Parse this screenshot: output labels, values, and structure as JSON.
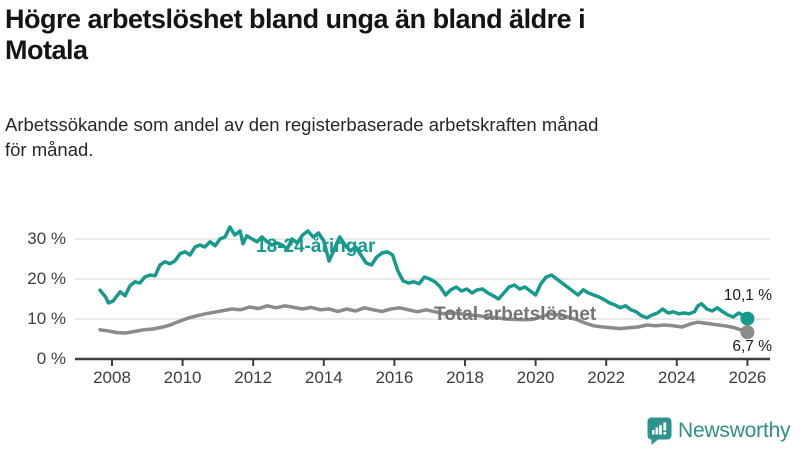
{
  "header": {
    "title": "Högre arbetslöshet bland unga än bland äldre i\nMotala",
    "subtitle": "Arbetssökande som andel av den registerbaserade arbetskraften månad\nför månad."
  },
  "footer": {
    "brand": "Newsworthy",
    "logo_icon": "bar-chart-exclamation-bubble"
  },
  "colors": {
    "young_series": "#179a8e",
    "total_series": "#8b8b8b",
    "total_label": "#757575",
    "axis": "#3f3f3f",
    "gridline": "#dcdcdc",
    "brand_teal": "#2e938c"
  },
  "chart_data": {
    "type": "line",
    "title": "Högre arbetslöshet bland unga än bland äldre i Motala",
    "subtitle": "Arbetssökande som andel av den registerbaserade arbetskraften månad för månad.",
    "xlabel": "",
    "ylabel": "",
    "xlim": [
      2007.6,
      2026.6
    ],
    "ylim": [
      0,
      35
    ],
    "grid": "horizontal",
    "legend_position": "inline-labels",
    "x_axis": {
      "ticks": [
        2008,
        2010,
        2012,
        2014,
        2016,
        2018,
        2020,
        2022,
        2024,
        2026
      ]
    },
    "y_axis": {
      "ticks": [
        0,
        10,
        20,
        30
      ],
      "tick_labels": [
        "0 %",
        "10 %",
        "20 %",
        "30 %"
      ]
    },
    "series": [
      {
        "name": "18-24-åringar",
        "color": "#179a8e",
        "end_value": 10.1,
        "end_label": "10,1 %",
        "points": [
          [
            2007.66,
            17.2
          ],
          [
            2007.82,
            15.5
          ],
          [
            2007.9,
            14.0
          ],
          [
            2008.03,
            14.5
          ],
          [
            2008.23,
            16.8
          ],
          [
            2008.37,
            15.8
          ],
          [
            2008.51,
            18.3
          ],
          [
            2008.65,
            19.3
          ],
          [
            2008.79,
            19.0
          ],
          [
            2008.93,
            20.5
          ],
          [
            2009.08,
            21.0
          ],
          [
            2009.22,
            20.8
          ],
          [
            2009.36,
            23.5
          ],
          [
            2009.5,
            24.3
          ],
          [
            2009.64,
            23.8
          ],
          [
            2009.78,
            24.5
          ],
          [
            2009.93,
            26.3
          ],
          [
            2010.07,
            26.8
          ],
          [
            2010.21,
            26.0
          ],
          [
            2010.35,
            28.0
          ],
          [
            2010.49,
            28.5
          ],
          [
            2010.63,
            28.0
          ],
          [
            2010.78,
            29.3
          ],
          [
            2010.92,
            28.3
          ],
          [
            2011.06,
            30.0
          ],
          [
            2011.2,
            30.5
          ],
          [
            2011.34,
            33.0
          ],
          [
            2011.48,
            31.0
          ],
          [
            2011.63,
            32.0
          ],
          [
            2011.71,
            28.8
          ],
          [
            2011.82,
            30.8
          ],
          [
            2011.97,
            30.0
          ],
          [
            2012.11,
            29.3
          ],
          [
            2012.25,
            30.5
          ],
          [
            2012.39,
            29.3
          ],
          [
            2012.53,
            28.5
          ],
          [
            2012.68,
            29.0
          ],
          [
            2012.82,
            28.5
          ],
          [
            2012.96,
            27.5
          ],
          [
            2013.1,
            30.0
          ],
          [
            2013.25,
            29.0
          ],
          [
            2013.4,
            31.0
          ],
          [
            2013.55,
            32.0
          ],
          [
            2013.7,
            30.5
          ],
          [
            2013.85,
            31.5
          ],
          [
            2014.0,
            29.5
          ],
          [
            2014.15,
            24.5
          ],
          [
            2014.3,
            27.5
          ],
          [
            2014.45,
            30.5
          ],
          [
            2014.6,
            28.5
          ],
          [
            2014.75,
            27.0
          ],
          [
            2014.9,
            28.0
          ],
          [
            2015.05,
            26.0
          ],
          [
            2015.2,
            24.0
          ],
          [
            2015.35,
            23.5
          ],
          [
            2015.5,
            25.5
          ],
          [
            2015.65,
            26.5
          ],
          [
            2015.8,
            26.8
          ],
          [
            2015.95,
            26.0
          ],
          [
            2016.1,
            22.0
          ],
          [
            2016.25,
            19.5
          ],
          [
            2016.4,
            19.0
          ],
          [
            2016.55,
            19.3
          ],
          [
            2016.7,
            18.8
          ],
          [
            2016.85,
            20.5
          ],
          [
            2017.0,
            20.0
          ],
          [
            2017.15,
            19.3
          ],
          [
            2017.3,
            18.0
          ],
          [
            2017.45,
            16.0
          ],
          [
            2017.6,
            17.3
          ],
          [
            2017.75,
            18.0
          ],
          [
            2017.9,
            17.0
          ],
          [
            2018.05,
            17.5
          ],
          [
            2018.2,
            16.5
          ],
          [
            2018.35,
            17.3
          ],
          [
            2018.5,
            17.5
          ],
          [
            2018.65,
            16.5
          ],
          [
            2018.8,
            15.8
          ],
          [
            2018.95,
            15.0
          ],
          [
            2019.1,
            16.5
          ],
          [
            2019.25,
            18.0
          ],
          [
            2019.4,
            18.5
          ],
          [
            2019.55,
            17.5
          ],
          [
            2019.7,
            18.0
          ],
          [
            2019.85,
            17.0
          ],
          [
            2020.0,
            16.0
          ],
          [
            2020.15,
            18.8
          ],
          [
            2020.3,
            20.5
          ],
          [
            2020.45,
            21.0
          ],
          [
            2020.6,
            20.0
          ],
          [
            2020.75,
            19.0
          ],
          [
            2020.9,
            18.0
          ],
          [
            2021.05,
            17.0
          ],
          [
            2021.2,
            16.0
          ],
          [
            2021.35,
            17.3
          ],
          [
            2021.5,
            16.5
          ],
          [
            2021.65,
            16.0
          ],
          [
            2021.8,
            15.5
          ],
          [
            2021.95,
            14.8
          ],
          [
            2022.1,
            14.0
          ],
          [
            2022.25,
            13.5
          ],
          [
            2022.4,
            12.8
          ],
          [
            2022.55,
            13.3
          ],
          [
            2022.7,
            12.3
          ],
          [
            2022.85,
            11.8
          ],
          [
            2023.0,
            10.8
          ],
          [
            2023.15,
            10.3
          ],
          [
            2023.3,
            11.0
          ],
          [
            2023.45,
            11.5
          ],
          [
            2023.6,
            12.5
          ],
          [
            2023.75,
            11.5
          ],
          [
            2023.9,
            11.8
          ],
          [
            2024.05,
            11.3
          ],
          [
            2024.2,
            11.5
          ],
          [
            2024.35,
            11.3
          ],
          [
            2024.5,
            11.8
          ],
          [
            2024.6,
            13.3
          ],
          [
            2024.7,
            13.8
          ],
          [
            2024.85,
            12.5
          ],
          [
            2025.0,
            12.0
          ],
          [
            2025.15,
            12.8
          ],
          [
            2025.3,
            11.8
          ],
          [
            2025.45,
            11.0
          ],
          [
            2025.6,
            10.5
          ],
          [
            2025.75,
            11.5
          ],
          [
            2025.9,
            10.8
          ],
          [
            2026.0,
            10.1
          ]
        ]
      },
      {
        "name": "Total arbetslöshet",
        "color": "#8b8b8b",
        "end_value": 6.7,
        "end_label": "6,7 %",
        "points": [
          [
            2007.66,
            7.3
          ],
          [
            2007.9,
            7.0
          ],
          [
            2008.15,
            6.6
          ],
          [
            2008.4,
            6.5
          ],
          [
            2008.65,
            6.9
          ],
          [
            2008.9,
            7.3
          ],
          [
            2009.15,
            7.5
          ],
          [
            2009.4,
            7.9
          ],
          [
            2009.65,
            8.5
          ],
          [
            2009.9,
            9.4
          ],
          [
            2010.15,
            10.2
          ],
          [
            2010.4,
            10.8
          ],
          [
            2010.65,
            11.3
          ],
          [
            2010.9,
            11.7
          ],
          [
            2011.15,
            12.1
          ],
          [
            2011.4,
            12.5
          ],
          [
            2011.65,
            12.3
          ],
          [
            2011.9,
            13.0
          ],
          [
            2012.15,
            12.6
          ],
          [
            2012.4,
            13.3
          ],
          [
            2012.65,
            12.8
          ],
          [
            2012.9,
            13.3
          ],
          [
            2013.15,
            12.9
          ],
          [
            2013.4,
            12.5
          ],
          [
            2013.65,
            12.9
          ],
          [
            2013.9,
            12.3
          ],
          [
            2014.15,
            12.5
          ],
          [
            2014.4,
            11.9
          ],
          [
            2014.65,
            12.5
          ],
          [
            2014.9,
            12.0
          ],
          [
            2015.15,
            12.8
          ],
          [
            2015.4,
            12.3
          ],
          [
            2015.65,
            11.9
          ],
          [
            2015.9,
            12.5
          ],
          [
            2016.15,
            12.8
          ],
          [
            2016.4,
            12.3
          ],
          [
            2016.65,
            11.8
          ],
          [
            2016.9,
            12.3
          ],
          [
            2017.15,
            11.8
          ],
          [
            2017.4,
            11.3
          ],
          [
            2017.65,
            11.5
          ],
          [
            2017.9,
            11.3
          ],
          [
            2018.15,
            11.0
          ],
          [
            2018.4,
            10.8
          ],
          [
            2018.65,
            10.5
          ],
          [
            2018.9,
            10.3
          ],
          [
            2019.15,
            10.0
          ],
          [
            2019.4,
            9.9
          ],
          [
            2019.65,
            9.8
          ],
          [
            2019.9,
            9.9
          ],
          [
            2020.15,
            10.5
          ],
          [
            2020.4,
            11.3
          ],
          [
            2020.65,
            11.0
          ],
          [
            2020.9,
            10.5
          ],
          [
            2021.15,
            9.9
          ],
          [
            2021.4,
            9.0
          ],
          [
            2021.65,
            8.3
          ],
          [
            2021.9,
            8.0
          ],
          [
            2022.15,
            7.8
          ],
          [
            2022.4,
            7.6
          ],
          [
            2022.65,
            7.8
          ],
          [
            2022.9,
            8.0
          ],
          [
            2023.15,
            8.5
          ],
          [
            2023.4,
            8.3
          ],
          [
            2023.65,
            8.5
          ],
          [
            2023.9,
            8.3
          ],
          [
            2024.15,
            8.0
          ],
          [
            2024.4,
            8.8
          ],
          [
            2024.6,
            9.2
          ],
          [
            2024.85,
            8.9
          ],
          [
            2025.1,
            8.6
          ],
          [
            2025.35,
            8.3
          ],
          [
            2025.6,
            7.9
          ],
          [
            2025.85,
            7.2
          ],
          [
            2026.0,
            6.7
          ]
        ]
      }
    ]
  }
}
